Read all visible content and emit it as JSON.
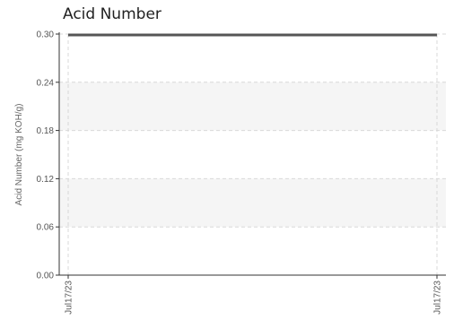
{
  "chart_data": {
    "type": "line",
    "title": "Acid Number",
    "ylabel": "Acid Number (mg KOH/g)",
    "xlabel": "",
    "ylim": [
      0,
      0.3
    ],
    "y_ticks": [
      "0.00",
      "0.06",
      "0.12",
      "0.18",
      "0.24",
      "0.30"
    ],
    "x_ticks": [
      "Jul17/23",
      "Jul17/23"
    ],
    "grid": true,
    "legend": "none",
    "series": [
      {
        "x": [
          "Jul17/23",
          "Jul17/23"
        ],
        "values": [
          0.3,
          0.3
        ],
        "color": "#555555"
      }
    ],
    "band_color": "#f5f5f5",
    "grid_color": "#d8d8d8",
    "axis_color": "#333333"
  }
}
